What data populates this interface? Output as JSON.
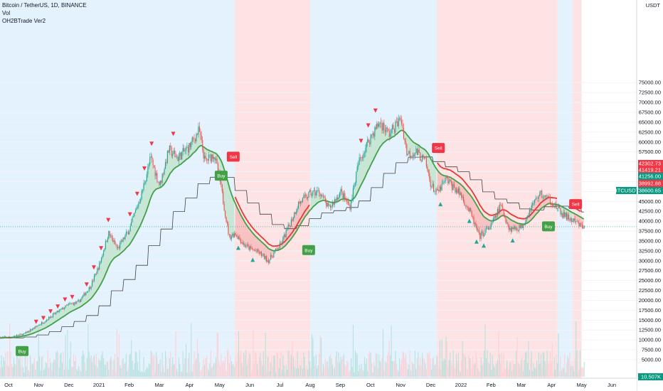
{
  "header": {
    "title": "Bitcoin / TetherUS, 1D, BINANCE",
    "vol_label": "Vol",
    "indicator_label": "OH2BTrade Ver2"
  },
  "chart_data": {
    "type": "candlestick",
    "symbol": "BTCUSDT",
    "currency_label": "USDT",
    "x_ticks": [
      "Oct",
      "Nov",
      "Dec",
      "2021",
      "Feb",
      "Mar",
      "Apr",
      "May",
      "Jun",
      "Jul",
      "Aug",
      "Sep",
      "Oct",
      "Nov",
      "Dec",
      "2022",
      "Feb",
      "Mar",
      "Apr",
      "May",
      "Jun"
    ],
    "y_ticks": [
      5000,
      7500,
      10000,
      12500,
      15000,
      17500,
      20000,
      22500,
      25000,
      27500,
      30000,
      32500,
      35000,
      37500,
      40000,
      42500,
      45000,
      47500,
      50000,
      52500,
      55000,
      57500,
      60000,
      62500,
      65000,
      67500,
      70000,
      72500,
      75000
    ],
    "y_tick_labels": [
      "5000.00",
      "7500.00",
      "10000.00",
      "12500.00",
      "15000.00",
      "17500.00",
      "20000.00",
      "22500.00",
      "25000.00",
      "27500.00",
      "30000.00",
      "32500.00",
      "35000.00",
      "37500.00",
      "40000.00",
      "42500.00",
      "45000.00",
      "47500.00",
      "50000.00",
      "52500.00",
      "55000.00",
      "57500.00",
      "60000.00",
      "62500.00",
      "65000.00",
      "67500.00",
      "70000.00",
      "72500.00",
      "75000.00"
    ],
    "y_scale": "linear",
    "price_path": {
      "month_index": [
        0,
        0.5,
        1,
        1.5,
        2,
        2.3,
        2.7,
        3,
        3.3,
        3.6,
        4,
        4.4,
        4.7,
        5,
        5.3,
        5.6,
        6,
        6.3,
        6.5,
        6.8,
        7,
        7.3,
        7.5,
        7.8,
        8,
        8.3,
        8.6,
        9,
        9.3,
        9.6,
        10,
        10.3,
        10.6,
        11,
        11.3,
        11.6,
        12,
        12.3,
        12.6,
        13,
        13.2,
        13.5,
        13.8,
        14,
        14.2,
        14.5,
        15,
        15.3,
        15.6,
        16,
        16.3,
        16.6,
        17,
        17.3,
        17.6,
        18,
        18.3,
        18.6,
        19
      ],
      "close": [
        10700,
        11500,
        13800,
        16500,
        19000,
        19500,
        23500,
        29000,
        37000,
        33000,
        38000,
        47000,
        56000,
        49000,
        58000,
        56000,
        59000,
        63000,
        55000,
        57000,
        50000,
        36000,
        37000,
        34000,
        33000,
        32000,
        30000,
        34000,
        39000,
        44500,
        47000,
        47500,
        43000,
        47500,
        43500,
        55000,
        61500,
        65000,
        62000,
        66000,
        57000,
        57500,
        55000,
        49000,
        47000,
        50500,
        46500,
        42000,
        36000,
        39000,
        44000,
        38000,
        38500,
        43500,
        47000,
        45000,
        42000,
        40500,
        38600
      ]
    },
    "last_price": 38600.65,
    "price_labels": [
      {
        "text": "42302.73",
        "value": 42302.73,
        "color": "#f23645"
      },
      {
        "text": "41419.21",
        "value": 41419.21,
        "color": "#f23645"
      },
      {
        "text": "41256.00",
        "value": 41256.0,
        "color": "#089981"
      },
      {
        "text": "38992.88",
        "value": 38992.88,
        "color": "#f23645"
      },
      {
        "text": "38600.65",
        "value": 38600.65,
        "color": "#089981"
      }
    ],
    "regions": [
      {
        "from": 0,
        "to": 7.5,
        "kind": "up"
      },
      {
        "from": 7.5,
        "to": 10.0,
        "kind": "down"
      },
      {
        "from": 10.0,
        "to": 14.2,
        "kind": "up"
      },
      {
        "from": 14.2,
        "to": 18.2,
        "kind": "down"
      },
      {
        "from": 18.2,
        "to": 18.7,
        "kind": "up"
      },
      {
        "from": 18.7,
        "to": 19.0,
        "kind": "down"
      }
    ],
    "signals": [
      {
        "text": "Buy",
        "month_index": 0.45,
        "price": 7200,
        "kind": "buy"
      },
      {
        "text": "Buy",
        "month_index": 7.05,
        "price": 51500,
        "kind": "buy"
      },
      {
        "text": "Sell",
        "month_index": 7.45,
        "price": 56300,
        "kind": "sell"
      },
      {
        "text": "Buy",
        "month_index": 9.95,
        "price": 32700,
        "kind": "buy"
      },
      {
        "text": "Sell",
        "month_index": 14.25,
        "price": 58500,
        "kind": "sell"
      },
      {
        "text": "Buy",
        "month_index": 17.9,
        "price": 38700,
        "kind": "buy"
      },
      {
        "text": "Sell",
        "month_index": 18.8,
        "price": 44300,
        "kind": "sell"
      }
    ],
    "volume_label": "10.507K",
    "colors": {
      "up_candle": "#26a69a",
      "down_candle": "#ef5350",
      "up_region": "#e3f2fd",
      "down_region": "#fde3e3",
      "fast_line": "#43a047",
      "slow_line": "#424242",
      "sell_line": "#e53935",
      "price_line": "#089981"
    }
  }
}
